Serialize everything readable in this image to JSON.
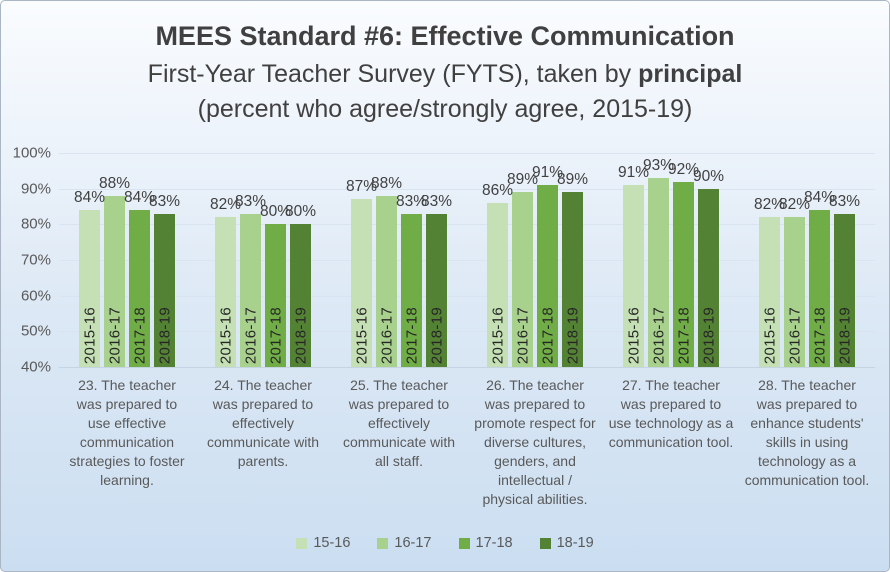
{
  "title": {
    "line1": "MEES Standard #6: Effective Communication",
    "line2_prefix": "First-Year Teacher Survey (FYTS), taken by ",
    "line2_bold": "principal",
    "line3": "(percent who agree/strongly agree, 2015-19)"
  },
  "chart_data": {
    "type": "bar",
    "title": "MEES Standard #6: Effective Communication — First-Year Teacher Survey (FYTS), taken by principal (percent who agree/strongly agree, 2015-19)",
    "categories": [
      "23. The teacher was prepared to use effective communication strategies to foster learning.",
      "24. The teacher was prepared to effectively communicate with parents.",
      "25. The teacher was prepared to effectively communicate with all staff.",
      "26. The teacher was prepared to promote respect for diverse cultures, genders, and intellectual / physical abilities.",
      "27. The teacher was prepared to use technology as a communication tool.",
      "28. The teacher was prepared to enhance students' skills in using technology as a communication tool."
    ],
    "bar_year_labels": [
      "2015-16",
      "2016-17",
      "2017-18",
      "2018-19"
    ],
    "series": [
      {
        "name": "15-16",
        "color": "#c5e0b4",
        "values": [
          84,
          82,
          87,
          86,
          91,
          82
        ]
      },
      {
        "name": "16-17",
        "color": "#a9d18e",
        "values": [
          88,
          83,
          88,
          89,
          93,
          82
        ]
      },
      {
        "name": "17-18",
        "color": "#70ad47",
        "values": [
          84,
          80,
          83,
          91,
          92,
          84
        ]
      },
      {
        "name": "18-19",
        "color": "#548235",
        "values": [
          83,
          80,
          83,
          89,
          90,
          83
        ]
      }
    ],
    "value_suffix": "%",
    "ylim": [
      40,
      100
    ],
    "yticks": [
      "100%",
      "90%",
      "80%",
      "70%",
      "60%",
      "50%",
      "40%"
    ],
    "grid": true,
    "legend_position": "bottom"
  }
}
